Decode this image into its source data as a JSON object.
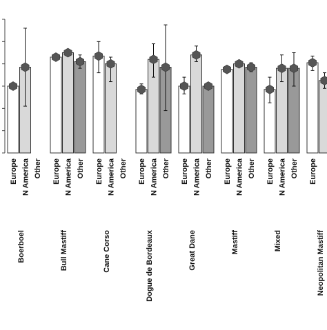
{
  "chart_data": {
    "type": "bar",
    "title": "",
    "xlabel": "",
    "ylabel": "",
    "ylim": [
      0,
      1.2
    ],
    "grid": false,
    "legend": "none",
    "groups": [
      "Boerboel",
      "Bull Mastiff",
      "Cane Corso",
      "Dogue de Bordeaux",
      "Great Dane",
      "Mastiff",
      "Mixed",
      "Neopolitan Mastiff"
    ],
    "sub_categories": [
      "Europe",
      "N America",
      "Other"
    ],
    "sub_colors": {
      "Europe": "#ffffff",
      "N America": "#d9d9d9",
      "Other": "#999999"
    },
    "bars": [
      {
        "group": "Boerboel",
        "region": "Europe",
        "value": 0.6,
        "err_low": 0.6,
        "err_high": 0.6
      },
      {
        "group": "Boerboel",
        "region": "N America",
        "value": 0.77,
        "err_low": 0.42,
        "err_high": 1.12
      },
      {
        "group": "Boerboel",
        "region": "Other",
        "value": null,
        "err_low": null,
        "err_high": null
      },
      {
        "group": "Bull Mastiff",
        "region": "Europe",
        "value": 0.86,
        "err_low": 0.86,
        "err_high": 0.86
      },
      {
        "group": "Bull Mastiff",
        "region": "N America",
        "value": 0.9,
        "err_low": 0.9,
        "err_high": 0.9
      },
      {
        "group": "Bull Mastiff",
        "region": "Other",
        "value": 0.82,
        "err_low": 0.76,
        "err_high": 0.88
      },
      {
        "group": "Cane Corso",
        "region": "Europe",
        "value": 0.87,
        "err_low": 0.72,
        "err_high": 1.0
      },
      {
        "group": "Cane Corso",
        "region": "N America",
        "value": 0.8,
        "err_low": 0.64,
        "err_high": 0.86
      },
      {
        "group": "Cane Corso",
        "region": "Other",
        "value": null,
        "err_low": null,
        "err_high": null
      },
      {
        "group": "Dogue de Bordeaux",
        "region": "Europe",
        "value": 0.57,
        "err_low": 0.53,
        "err_high": 0.62
      },
      {
        "group": "Dogue de Bordeaux",
        "region": "N America",
        "value": 0.84,
        "err_low": 0.68,
        "err_high": 0.98
      },
      {
        "group": "Dogue de Bordeaux",
        "region": "Other",
        "value": 0.77,
        "err_low": 0.38,
        "err_high": 1.15
      },
      {
        "group": "Great Dane",
        "region": "Europe",
        "value": 0.6,
        "err_low": 0.53,
        "err_high": 0.68
      },
      {
        "group": "Great Dane",
        "region": "N America",
        "value": 0.88,
        "err_low": 0.82,
        "err_high": 0.96
      },
      {
        "group": "Great Dane",
        "region": "Other",
        "value": 0.6,
        "err_low": 0.6,
        "err_high": 0.6
      },
      {
        "group": "Mastiff",
        "region": "Europe",
        "value": 0.75,
        "err_low": 0.75,
        "err_high": 0.75
      },
      {
        "group": "Mastiff",
        "region": "N America",
        "value": 0.8,
        "err_low": 0.8,
        "err_high": 0.8
      },
      {
        "group": "Mastiff",
        "region": "Other",
        "value": 0.77,
        "err_low": 0.73,
        "err_high": 0.81
      },
      {
        "group": "Mixed",
        "region": "Europe",
        "value": 0.57,
        "err_low": 0.45,
        "err_high": 0.68
      },
      {
        "group": "Mixed",
        "region": "N America",
        "value": 0.76,
        "err_low": 0.64,
        "err_high": 0.88
      },
      {
        "group": "Mixed",
        "region": "Other",
        "value": 0.76,
        "err_low": 0.6,
        "err_high": 0.9
      },
      {
        "group": "Neopolitan Mastiff",
        "region": "Europe",
        "value": 0.81,
        "err_low": 0.74,
        "err_high": 0.87
      },
      {
        "group": "Neopolitan Mastiff",
        "region": "N America",
        "value": 0.65,
        "err_low": 0.58,
        "err_high": 0.72
      }
    ]
  }
}
